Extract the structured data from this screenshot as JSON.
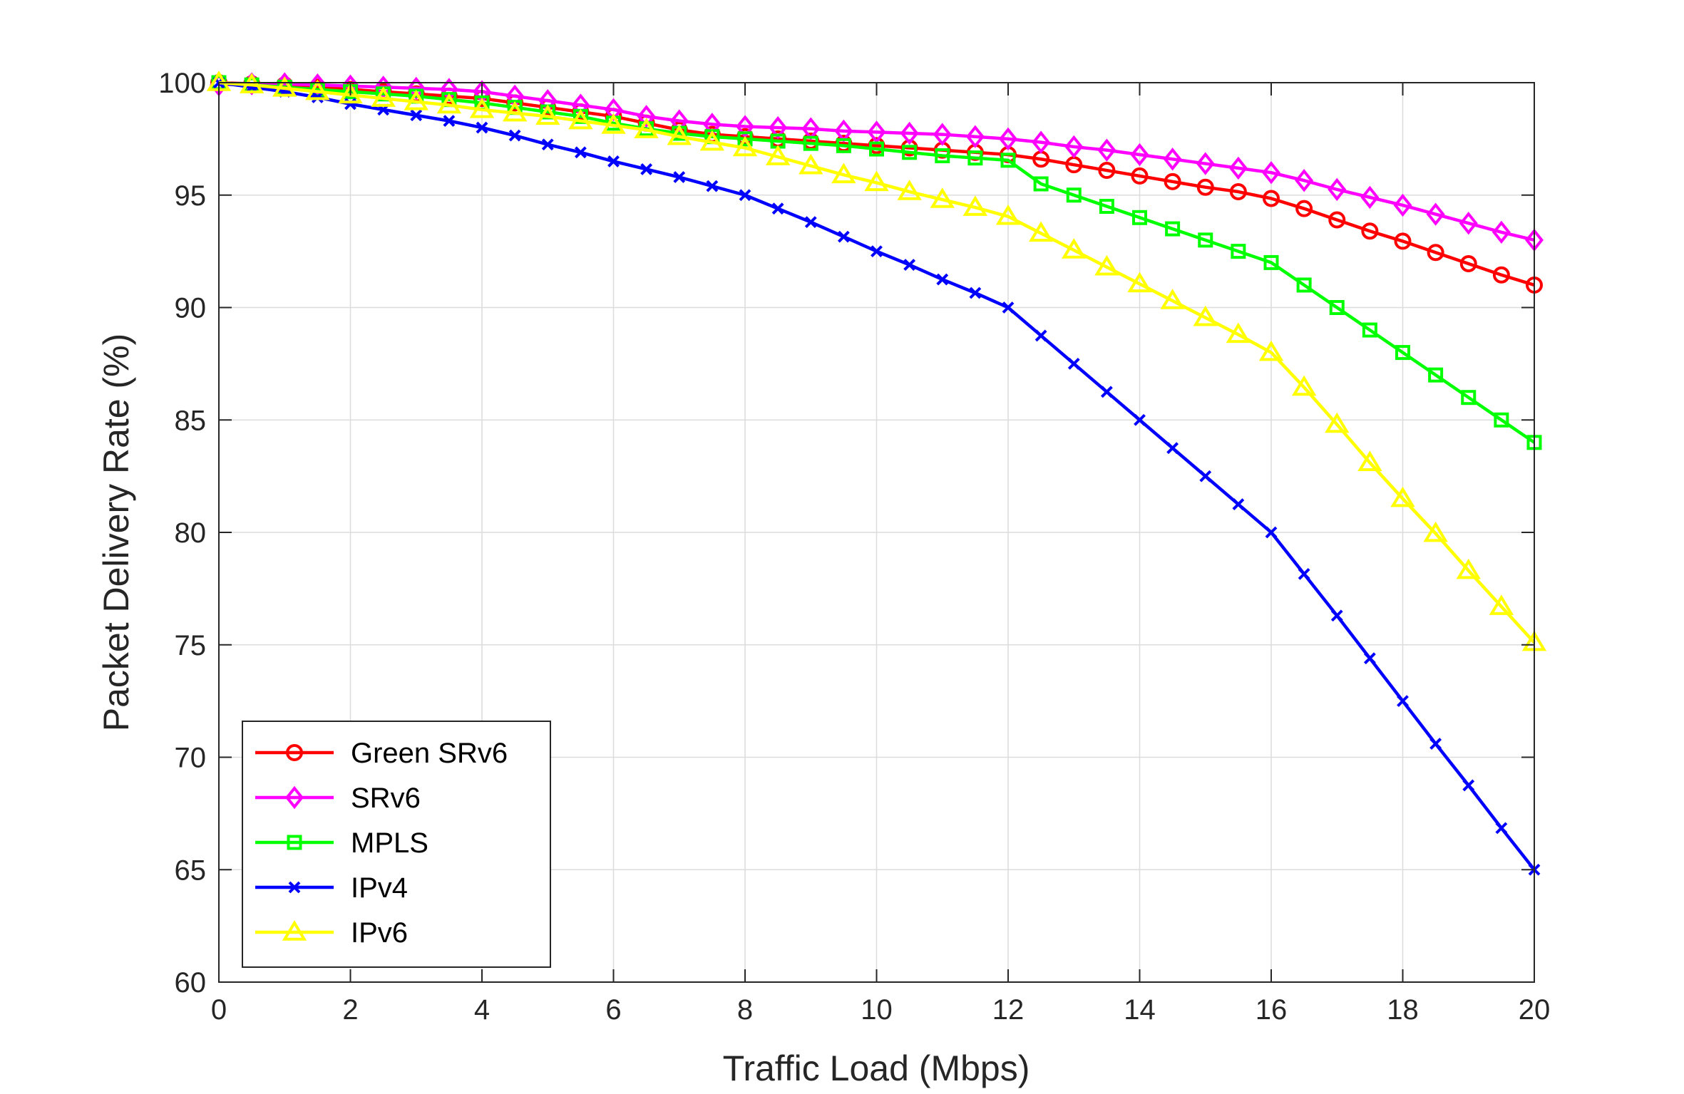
{
  "chart_data": {
    "type": "line",
    "title": "",
    "xlabel": "Traffic Load (Mbps)",
    "ylabel": "Packet Delivery Rate (%)",
    "xlim": [
      0,
      20
    ],
    "ylim": [
      60,
      100
    ],
    "xticks": [
      0,
      2,
      4,
      6,
      8,
      10,
      12,
      14,
      16,
      18,
      20
    ],
    "yticks": [
      60,
      65,
      70,
      75,
      80,
      85,
      90,
      95,
      100
    ],
    "xtick_labels": [
      "0",
      "2",
      "4",
      "6",
      "8",
      "10",
      "12",
      "14",
      "16",
      "18",
      "20"
    ],
    "ytick_labels": [
      "60",
      "65",
      "70",
      "75",
      "80",
      "85",
      "90",
      "95",
      "100"
    ],
    "grid": true,
    "legend_position": "bottom-left",
    "x": [
      0,
      0.5,
      1,
      1.5,
      2,
      2.5,
      3,
      3.5,
      4,
      4.5,
      5,
      5.5,
      6,
      6.5,
      7,
      7.5,
      8,
      8.5,
      9,
      9.5,
      10,
      10.5,
      11,
      11.5,
      12,
      12.5,
      13,
      13.5,
      14,
      14.5,
      15,
      15.5,
      16,
      16.5,
      17,
      17.5,
      18,
      18.5,
      19,
      19.5,
      20
    ],
    "series": [
      {
        "name": "Green SRv6",
        "color": "#ff0000",
        "marker": "circle",
        "values": [
          100,
          99.95,
          99.9,
          99.8,
          99.7,
          99.6,
          99.5,
          99.4,
          99.3,
          99.1,
          98.9,
          98.7,
          98.5,
          98.2,
          97.9,
          97.7,
          97.6,
          97.5,
          97.4,
          97.3,
          97.2,
          97.1,
          97.0,
          96.9,
          96.8,
          96.6,
          96.35,
          96.1,
          95.85,
          95.6,
          95.35,
          95.15,
          94.85,
          94.4,
          93.9,
          93.4,
          92.95,
          92.45,
          91.95,
          91.45,
          91.0
        ]
      },
      {
        "name": "SRv6",
        "color": "#ff00ff",
        "marker": "diamond",
        "values": [
          99.9,
          99.95,
          99.95,
          99.9,
          99.85,
          99.8,
          99.75,
          99.7,
          99.6,
          99.4,
          99.2,
          99.0,
          98.8,
          98.5,
          98.3,
          98.15,
          98.05,
          98.0,
          97.95,
          97.85,
          97.8,
          97.75,
          97.7,
          97.6,
          97.5,
          97.35,
          97.15,
          97.0,
          96.8,
          96.6,
          96.4,
          96.2,
          96.0,
          95.65,
          95.25,
          94.9,
          94.55,
          94.15,
          93.75,
          93.35,
          93.0
        ]
      },
      {
        "name": "MPLS",
        "color": "#00ff00",
        "marker": "square",
        "values": [
          100,
          99.9,
          99.8,
          99.7,
          99.6,
          99.5,
          99.4,
          99.25,
          99.1,
          98.9,
          98.7,
          98.5,
          98.2,
          97.95,
          97.75,
          97.6,
          97.5,
          97.4,
          97.3,
          97.2,
          97.05,
          96.9,
          96.75,
          96.65,
          96.55,
          95.5,
          95.0,
          94.5,
          94.0,
          93.5,
          93.0,
          92.5,
          92.0,
          91.0,
          90.0,
          89.0,
          88.0,
          87.0,
          86.0,
          85.0,
          84.0
        ]
      },
      {
        "name": "IPv4",
        "color": "#0000ff",
        "marker": "x",
        "values": [
          100,
          99.8,
          99.6,
          99.35,
          99.05,
          98.8,
          98.55,
          98.3,
          98.0,
          97.65,
          97.25,
          96.9,
          96.5,
          96.15,
          95.8,
          95.4,
          95.0,
          94.4,
          93.8,
          93.15,
          92.5,
          91.9,
          91.25,
          90.65,
          90.0,
          88.75,
          87.5,
          86.25,
          85.0,
          83.75,
          82.5,
          81.25,
          80.0,
          78.15,
          76.3,
          74.4,
          72.5,
          70.6,
          68.75,
          66.85,
          65.0
        ]
      },
      {
        "name": "IPv6",
        "color": "#ffff00",
        "marker": "triangle",
        "values": [
          100,
          99.9,
          99.75,
          99.6,
          99.45,
          99.3,
          99.15,
          99.0,
          98.8,
          98.65,
          98.5,
          98.3,
          98.1,
          97.9,
          97.6,
          97.35,
          97.1,
          96.7,
          96.3,
          95.9,
          95.55,
          95.15,
          94.8,
          94.45,
          94.05,
          93.3,
          92.55,
          91.8,
          91.05,
          90.3,
          89.55,
          88.8,
          88.0,
          86.45,
          84.8,
          83.1,
          81.5,
          79.95,
          78.3,
          76.7,
          75.1
        ]
      }
    ]
  }
}
